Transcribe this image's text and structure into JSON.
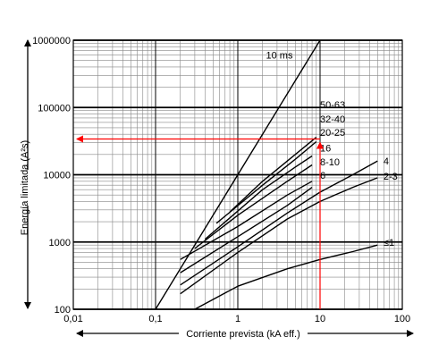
{
  "chart_data": {
    "type": "line",
    "xscale": "log",
    "yscale": "log",
    "xlim": [
      0.01,
      100
    ],
    "ylim": [
      100,
      1000000
    ],
    "grid": true,
    "xlabel": "Corriente prevista (kA eff.)",
    "ylabel": "Energía limitada (A²s)",
    "x_ticks": [
      {
        "value": 0.01,
        "label": "0,01"
      },
      {
        "value": 0.1,
        "label": "0,1"
      },
      {
        "value": 1,
        "label": "1"
      },
      {
        "value": 10,
        "label": "10"
      },
      {
        "value": 100,
        "label": "100"
      }
    ],
    "y_ticks": [
      {
        "value": 100,
        "label": "100"
      },
      {
        "value": 1000,
        "label": "1000"
      },
      {
        "value": 10000,
        "label": "10000"
      },
      {
        "value": 100000,
        "label": "100000"
      },
      {
        "value": 1000000,
        "label": "1000000"
      }
    ],
    "series": [
      {
        "name": "10 ms",
        "label_at": [
          2.2,
          600000
        ],
        "points": [
          [
            0.1,
            100
          ],
          [
            10,
            1000000
          ]
        ]
      },
      {
        "name": "50-63",
        "label_at": [
          10,
          110000
        ],
        "points": [
          [
            0.8,
            2800
          ],
          [
            2,
            8000
          ],
          [
            5,
            20000
          ],
          [
            9,
            36000
          ]
        ]
      },
      {
        "name": "32-40",
        "label_at": [
          10,
          68000
        ],
        "points": [
          [
            0.55,
            1900
          ],
          [
            2,
            7000
          ],
          [
            5,
            17000
          ],
          [
            9,
            31000
          ]
        ]
      },
      {
        "name": "20-25",
        "label_at": [
          10,
          43000
        ],
        "points": [
          [
            0.4,
            1100
          ],
          [
            2,
            6000
          ],
          [
            5,
            13000
          ],
          [
            8,
            19000
          ]
        ]
      },
      {
        "name": "16",
        "label_at": [
          10,
          25000
        ],
        "points": [
          [
            0.3,
            800
          ],
          [
            1,
            2500
          ],
          [
            4,
            8000
          ],
          [
            8,
            14000
          ]
        ]
      },
      {
        "name": "8-10",
        "label_at": [
          10,
          15500
        ],
        "points": [
          [
            0.2,
            550
          ],
          [
            1,
            1700
          ],
          [
            4,
            5000
          ],
          [
            8,
            8000
          ]
        ]
      },
      {
        "name": "6",
        "label_at": [
          10,
          9800
        ],
        "points": [
          [
            0.2,
            350
          ],
          [
            1,
            1200
          ],
          [
            4,
            3500
          ],
          [
            8,
            6500
          ]
        ]
      },
      {
        "name": "4",
        "label_at": [
          59,
          16000
        ],
        "points": [
          [
            0.2,
            230
          ],
          [
            1,
            850
          ],
          [
            4,
            2700
          ],
          [
            10,
            5500
          ],
          [
            25,
            10000
          ],
          [
            50,
            16000
          ]
        ]
      },
      {
        "name": "2-3",
        "label_at": [
          59,
          9500
        ],
        "points": [
          [
            0.2,
            170
          ],
          [
            1,
            700
          ],
          [
            4,
            2200
          ],
          [
            10,
            4000
          ],
          [
            25,
            6500
          ],
          [
            50,
            9000
          ]
        ]
      },
      {
        "name": "≤1",
        "label_at": [
          59,
          1000
        ],
        "points": [
          [
            0.3,
            100
          ],
          [
            1,
            220
          ],
          [
            4,
            400
          ],
          [
            10,
            550
          ],
          [
            25,
            720
          ],
          [
            50,
            900
          ]
        ]
      }
    ],
    "reference_lines": [
      {
        "color": "#ff0000",
        "points": [
          [
            10,
            100
          ],
          [
            10,
            34000
          ],
          [
            0.01,
            34000
          ]
        ],
        "arrows": true
      }
    ]
  }
}
